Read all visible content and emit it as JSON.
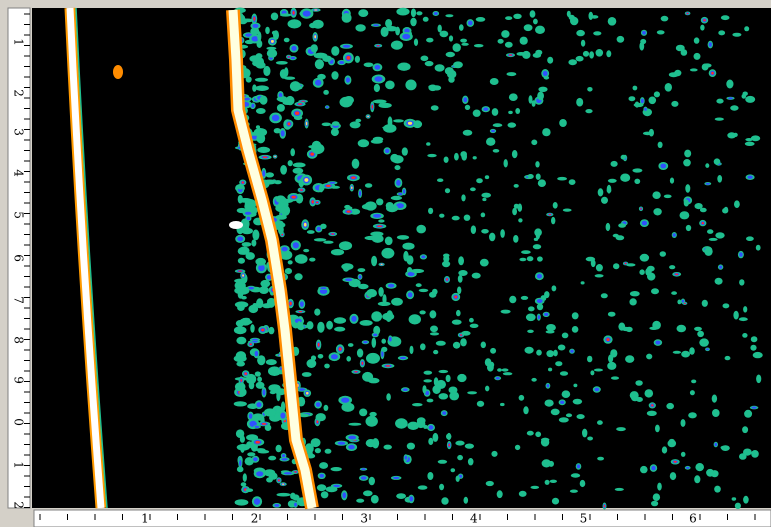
{
  "left_ruler": {
    "labels": [
      "1",
      "2",
      "3",
      "4",
      "5",
      "6",
      "7",
      "8",
      "9",
      "0",
      "1",
      "2"
    ]
  },
  "bottom_ruler": {
    "labels": [
      "1",
      "2",
      "3",
      "4",
      "5",
      "6"
    ]
  }
}
